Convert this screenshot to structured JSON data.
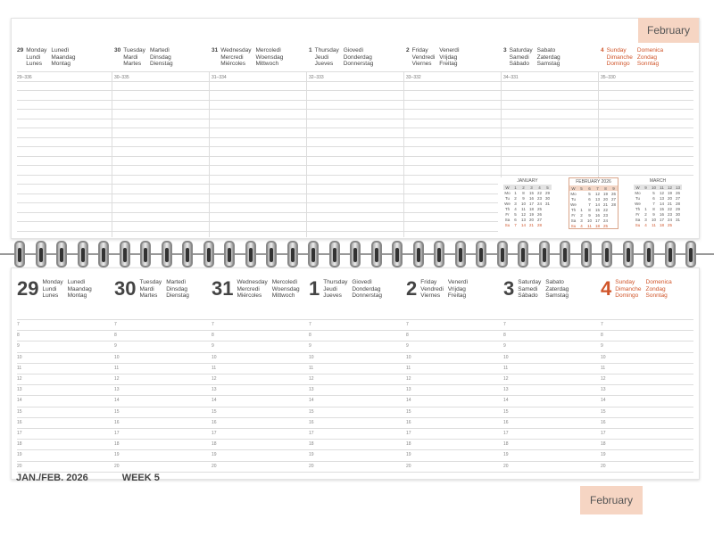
{
  "month_tab": "February",
  "footer": {
    "period": "JAN./FEB. 2026",
    "week": "WEEK 5"
  },
  "accent_color": "#d0552a",
  "tab_color": "#f6d5c3",
  "days": [
    {
      "num": "29",
      "names": [
        "Monday",
        "Lunedì",
        "Lundi",
        "Maandag",
        "Lunes",
        "Montag"
      ],
      "code": "29–336",
      "sunday": false
    },
    {
      "num": "30",
      "names": [
        "Tuesday",
        "Martedì",
        "Mardi",
        "Dinsdag",
        "Martes",
        "Dienstag"
      ],
      "code": "30–335",
      "sunday": false
    },
    {
      "num": "31",
      "names": [
        "Wednesday",
        "Mercoledì",
        "Mercredi",
        "Woensdag",
        "Miércoles",
        "Mittwoch"
      ],
      "code": "31–334",
      "sunday": false
    },
    {
      "num": "1",
      "names": [
        "Thursday",
        "Giovedì",
        "Jeudi",
        "Donderdag",
        "Jueves",
        "Donnerstag"
      ],
      "code": "32–333",
      "sunday": false
    },
    {
      "num": "2",
      "names": [
        "Friday",
        "Venerdì",
        "Vendredi",
        "Vrijdag",
        "Viernes",
        "Freitag"
      ],
      "code": "33–332",
      "sunday": false
    },
    {
      "num": "3",
      "names": [
        "Saturday",
        "Sabato",
        "Samedi",
        "Zaterdag",
        "Sábado",
        "Samstag"
      ],
      "code": "34–331",
      "sunday": false
    },
    {
      "num": "4",
      "names": [
        "Sunday",
        "Domenica",
        "Dimanche",
        "Zondag",
        "Domingo",
        "Sonntag"
      ],
      "code": "35–330",
      "sunday": true
    }
  ],
  "hours": [
    "7",
    "8",
    "9",
    "10",
    "11",
    "12",
    "13",
    "14",
    "15",
    "16",
    "17",
    "18",
    "19",
    "20"
  ],
  "mini_calendars": [
    {
      "title": "JANUARY",
      "weeks": [
        "W",
        "1",
        "2",
        "3",
        "4",
        "5"
      ],
      "rows": [
        [
          "Mo",
          "1",
          "8",
          "15",
          "22",
          "29"
        ],
        [
          "Tu",
          "2",
          "9",
          "16",
          "23",
          "30"
        ],
        [
          "We",
          "3",
          "10",
          "17",
          "24",
          "31"
        ],
        [
          "Th",
          "4",
          "11",
          "18",
          "25",
          ""
        ],
        [
          "Fr",
          "5",
          "12",
          "19",
          "26",
          ""
        ],
        [
          "Sa",
          "6",
          "13",
          "20",
          "27",
          ""
        ],
        [
          "Su",
          "7",
          "14",
          "21",
          "28",
          ""
        ]
      ]
    },
    {
      "title": "FEBRUARY 2026",
      "weeks": [
        "W",
        "5",
        "6",
        "7",
        "8",
        "9"
      ],
      "rows": [
        [
          "Mo",
          "",
          "5",
          "12",
          "19",
          "26"
        ],
        [
          "Tu",
          "",
          "6",
          "13",
          "20",
          "27"
        ],
        [
          "We",
          "",
          "7",
          "14",
          "21",
          "28"
        ],
        [
          "Th",
          "1",
          "8",
          "15",
          "22",
          ""
        ],
        [
          "Fr",
          "2",
          "9",
          "16",
          "23",
          ""
        ],
        [
          "Sa",
          "3",
          "10",
          "17",
          "24",
          ""
        ],
        [
          "Su",
          "4",
          "11",
          "18",
          "25",
          ""
        ]
      ]
    },
    {
      "title": "MARCH",
      "weeks": [
        "W",
        "9",
        "10",
        "11",
        "12",
        "13"
      ],
      "rows": [
        [
          "Mo",
          "",
          "5",
          "12",
          "19",
          "26"
        ],
        [
          "Tu",
          "",
          "6",
          "13",
          "20",
          "27"
        ],
        [
          "We",
          "",
          "7",
          "14",
          "21",
          "28"
        ],
        [
          "Th",
          "1",
          "8",
          "15",
          "22",
          "29"
        ],
        [
          "Fr",
          "2",
          "9",
          "16",
          "23",
          "30"
        ],
        [
          "Sa",
          "3",
          "10",
          "17",
          "24",
          "31"
        ],
        [
          "Su",
          "4",
          "11",
          "18",
          "25",
          ""
        ]
      ]
    }
  ]
}
